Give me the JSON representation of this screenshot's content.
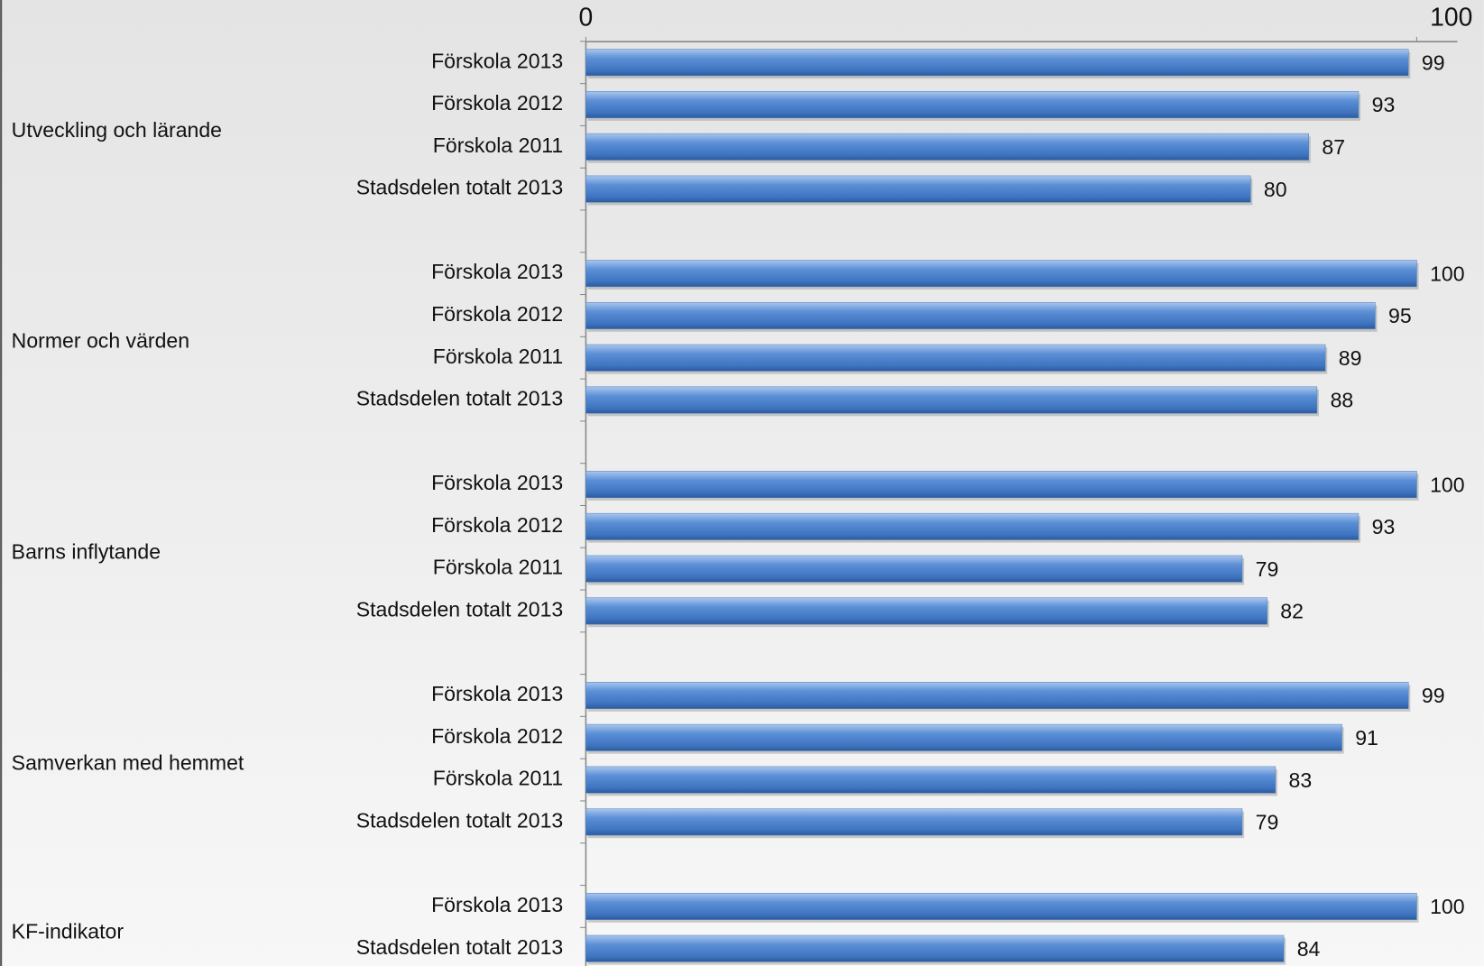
{
  "chart_data": {
    "type": "bar",
    "orientation": "horizontal",
    "color": "#4f81bd",
    "xlim": [
      0,
      100
    ],
    "xticks": [
      0,
      100
    ],
    "groups": [
      {
        "name": "Utveckling och lärande",
        "categories": [
          "Förskola 2013",
          "Förskola 2012",
          "Förskola 2011",
          "Stadsdelen totalt 2013"
        ],
        "values": [
          99,
          93,
          87,
          80
        ]
      },
      {
        "name": "Normer och värden",
        "categories": [
          "Förskola 2013",
          "Förskola 2012",
          "Förskola 2011",
          "Stadsdelen totalt 2013"
        ],
        "values": [
          100,
          95,
          89,
          88
        ]
      },
      {
        "name": "Barns inflytande",
        "categories": [
          "Förskola 2013",
          "Förskola 2012",
          "Förskola 2011",
          "Stadsdelen totalt 2013"
        ],
        "values": [
          100,
          93,
          79,
          82
        ]
      },
      {
        "name": "Samverkan med hemmet",
        "categories": [
          "Förskola 2013",
          "Förskola 2012",
          "Förskola 2011",
          "Stadsdelen totalt 2013"
        ],
        "values": [
          99,
          91,
          83,
          79
        ]
      },
      {
        "name": "KF-indikator",
        "categories": [
          "Förskola 2013",
          "Stadsdelen totalt 2013"
        ],
        "values": [
          100,
          84
        ]
      }
    ]
  }
}
